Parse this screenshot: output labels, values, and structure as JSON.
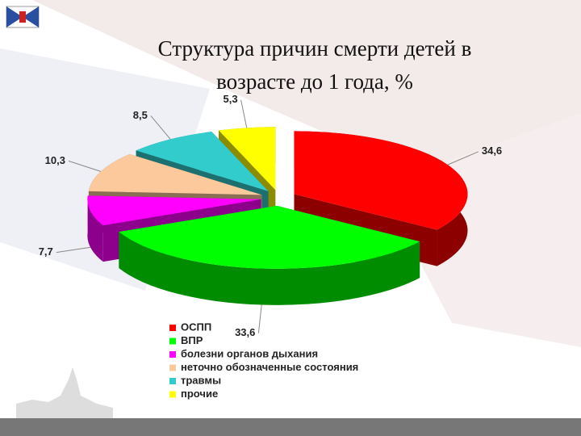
{
  "chart_data": {
    "type": "pie",
    "title": "Структура причин смерти детей в возрасте до 1 года, %",
    "categories": [
      "ОСПП",
      "ВПР",
      "болезни органов дыхания",
      "неточно обозначенные состояния",
      "травмы",
      "прочие"
    ],
    "values": [
      34.6,
      33.6,
      7.7,
      10.3,
      8.5,
      5.3
    ],
    "value_labels": [
      "34,6",
      "33,6",
      "7,7",
      "10,3",
      "8,5",
      "5,3"
    ],
    "colors": [
      "#ff0000",
      "#00ff00",
      "#ff00ff",
      "#fbc99b",
      "#33cccc",
      "#ffff00"
    ]
  }
}
